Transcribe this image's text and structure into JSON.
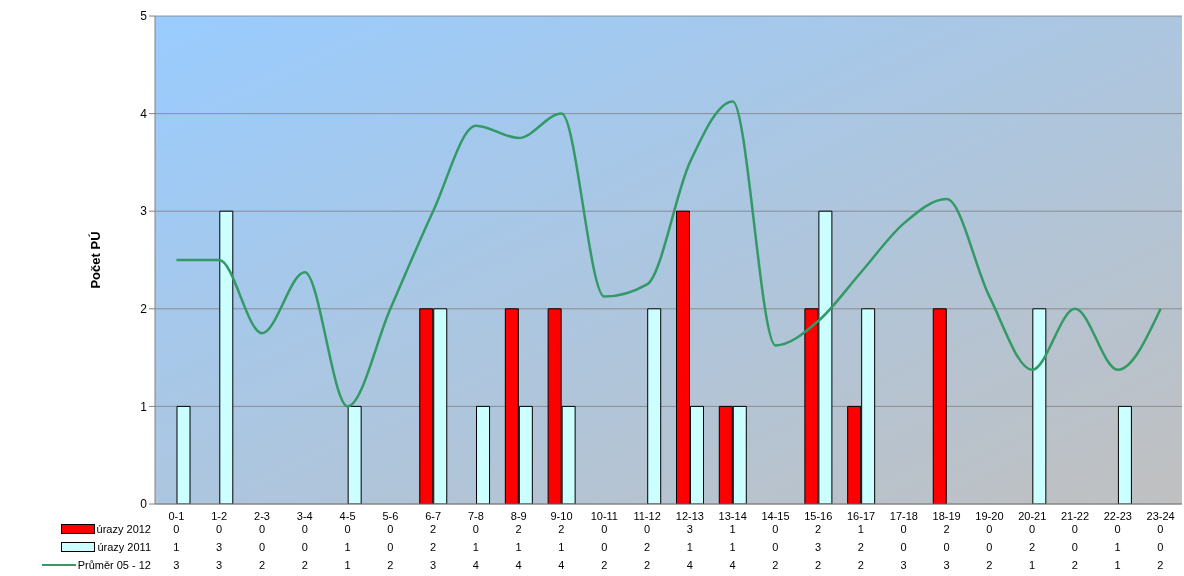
{
  "chart_data": {
    "type": "bar",
    "ylabel": "Počet PÚ",
    "categories": [
      "0-1",
      "1-2",
      "2-3",
      "3-4",
      "4-5",
      "5-6",
      "6-7",
      "7-8",
      "8-9",
      "9-10",
      "10-11",
      "11-12",
      "12-13",
      "13-14",
      "14-15",
      "15-16",
      "16-17",
      "17-18",
      "18-19",
      "19-20",
      "20-21",
      "21-22",
      "22-23",
      "23-24"
    ],
    "series": [
      {
        "name": "úrazy 2012",
        "color": "#ff0000",
        "values": [
          0,
          0,
          0,
          0,
          0,
          0,
          2,
          0,
          2,
          2,
          0,
          0,
          3,
          1,
          0,
          2,
          1,
          0,
          2,
          0,
          0,
          0,
          0,
          0
        ],
        "value_labels": [
          "0",
          "0",
          "0",
          "0",
          "0",
          "0",
          "2",
          "0",
          "2",
          "2",
          "0",
          "0",
          "3",
          "1",
          "0",
          "2",
          "1",
          "0",
          "2",
          "0",
          "0",
          "0",
          "0",
          "0"
        ]
      },
      {
        "name": "úrazy 2011",
        "color": "#ccffff",
        "values": [
          1,
          3,
          0,
          0,
          1,
          0,
          2,
          1,
          1,
          1,
          0,
          2,
          1,
          1,
          0,
          3,
          2,
          0,
          0,
          0,
          2,
          0,
          1,
          0
        ],
        "value_labels": [
          "1",
          "3",
          "0",
          "0",
          "1",
          "0",
          "2",
          "1",
          "1",
          "1",
          "0",
          "2",
          "1",
          "1",
          "0",
          "3",
          "2",
          "0",
          "0",
          "0",
          "2",
          "0",
          "1",
          "0"
        ]
      },
      {
        "name": "Průměr 05 - 12",
        "type": "line",
        "color": "#339966",
        "values": [
          2.5,
          2.5,
          1.75,
          2.375,
          1,
          2,
          3,
          3.875,
          3.75,
          4,
          2.125,
          2.25,
          3.5,
          4.125,
          1.625,
          1.875,
          2.375,
          2.875,
          3.125,
          2.125,
          1.375,
          2,
          1.375,
          2
        ],
        "value_labels": [
          "3",
          "3",
          "2",
          "2",
          "1",
          "2",
          "3",
          "4",
          "4",
          "4",
          "2",
          "2",
          "4",
          "4",
          "2",
          "2",
          "2",
          "3",
          "3",
          "2",
          "1",
          "2",
          "1",
          "2"
        ]
      }
    ],
    "ylim": [
      0,
      5
    ],
    "yticks": [
      0,
      1,
      2,
      3,
      4,
      5
    ],
    "grid": "y",
    "legend": "bottom",
    "marker": "none"
  }
}
